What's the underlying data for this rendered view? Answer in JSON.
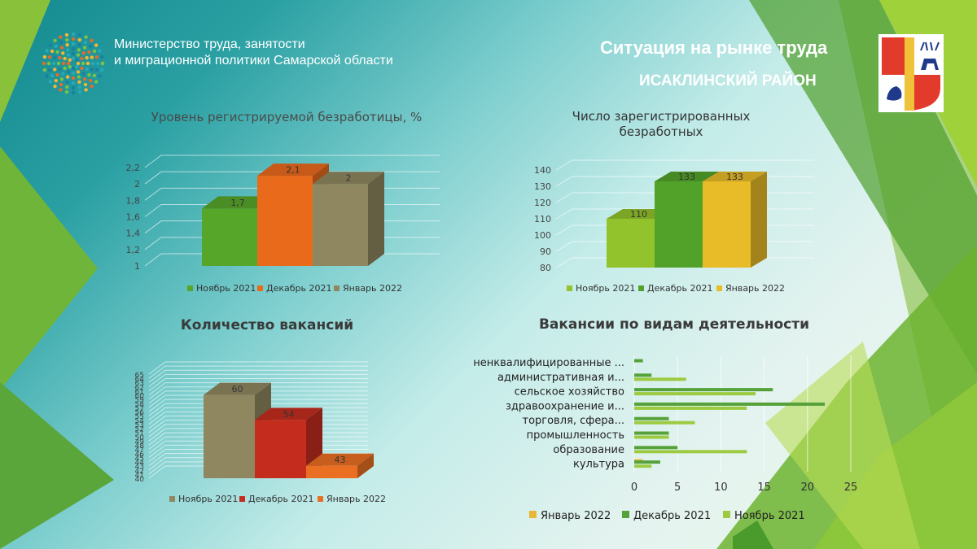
{
  "header": {
    "ministry_line1": "Министерство труда, занятости",
    "ministry_line2": "и миграционной политики  Самарской области",
    "title": "Ситуация на рынке труда",
    "district": "ИСАКЛИНСКИЙ РАЙОН"
  },
  "colors": {
    "nov_green": "#56a62a",
    "dec_orange": "#ea6a1c",
    "jan_khaki": "#8f8760",
    "lime": "#92c22c",
    "mid_green": "#52a22a",
    "yellow": "#e8bb28",
    "red": "#c42d1e",
    "orange2": "#ea6f22",
    "bar_green": "#56a23a",
    "bar_lime": "#9ccb42",
    "bar_yellow": "#e8b834"
  },
  "chart_data": [
    {
      "type": "bar",
      "title": "Уровень регистрируемой  безработицы, %",
      "categories": [
        "Ноябрь 2021",
        "Декабрь 2021",
        "Январь 2022"
      ],
      "values": [
        1.7,
        2.1,
        2.0
      ],
      "data_labels": [
        "1,7",
        "2,1",
        "2"
      ],
      "y_ticks": [
        "1",
        "1,2",
        "1,4",
        "1,6",
        "1,8",
        "2",
        "2,2"
      ],
      "ylim": [
        1,
        2.2
      ]
    },
    {
      "type": "bar",
      "title_line1": "Число зарегистрированных",
      "title_line2": "безработных",
      "categories": [
        "Ноябрь 2021",
        "Декабрь 2021",
        "Январь 2022"
      ],
      "values": [
        110,
        133,
        133
      ],
      "data_labels": [
        "110",
        "133",
        "133"
      ],
      "y_ticks": [
        "80",
        "90",
        "100",
        "110",
        "120",
        "130",
        "140"
      ],
      "ylim": [
        80,
        140
      ]
    },
    {
      "type": "bar",
      "title": "Количество вакансий",
      "categories": [
        "Ноябрь 2021",
        "Декабрь 2021",
        "Январь 2022"
      ],
      "values": [
        60,
        54,
        43
      ],
      "data_labels": [
        "60",
        "54",
        "43"
      ],
      "y_ticks": [
        "40",
        "41",
        "42",
        "43",
        "44",
        "45",
        "46",
        "47",
        "48",
        "49",
        "50",
        "51",
        "52",
        "53",
        "54",
        "55",
        "56",
        "57",
        "58",
        "59",
        "60",
        "61",
        "62",
        "63",
        "64",
        "65"
      ],
      "ylim": [
        40,
        65
      ]
    },
    {
      "type": "bar",
      "orientation": "horizontal",
      "title": "Вакансии по видам деятельности",
      "categories": [
        "ненквалифицированные ...",
        "административная  и...",
        "сельское хозяйство",
        "здравоохранение и...",
        "торговля, сфера...",
        "промышленность",
        "образование",
        "культура"
      ],
      "series": [
        {
          "name": "Январь 2022",
          "values": [
            0,
            0,
            0,
            0,
            0,
            0,
            0,
            1
          ]
        },
        {
          "name": "Декабрь 2021",
          "values": [
            1,
            2,
            16,
            22,
            4,
            4,
            5,
            3
          ]
        },
        {
          "name": "Ноябрь 2021",
          "values": [
            0,
            6,
            14,
            13,
            7,
            4,
            13,
            2
          ]
        }
      ],
      "x_ticks": [
        "0",
        "5",
        "10",
        "15",
        "20",
        "25"
      ],
      "xlim": [
        0,
        25
      ]
    }
  ]
}
